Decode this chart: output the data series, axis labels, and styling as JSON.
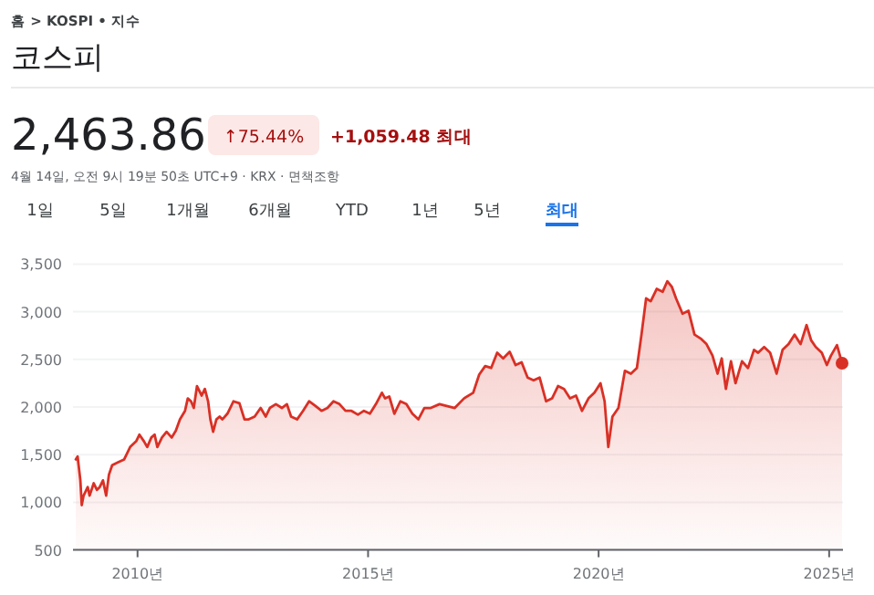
{
  "chart_data": {
    "type": "area",
    "title": "코스피",
    "annotations": [
      "홈 > KOSPI • 지수",
      "2,463.86",
      "↑75.44%",
      "+1,059.48 최대",
      "4월 14일, 오전 9시 19분 50초 UTC+9 · KRX · 면책조항",
      "1일",
      "5일",
      "1개월",
      "6개월",
      "YTD",
      "1년",
      "5년",
      "최대"
    ],
    "xlim": [
      2008.6,
      2025.3
    ],
    "ylim": [
      500,
      3500
    ],
    "xticks": [
      {
        "value": 2010,
        "label": "2010년"
      },
      {
        "value": 2015,
        "label": "2015년"
      },
      {
        "value": 2020,
        "label": "2020년"
      },
      {
        "value": 2025,
        "label": "2025년"
      }
    ],
    "yticks": [
      500,
      {
        "value": 1000,
        "label": "1,000"
      },
      {
        "value": 1500,
        "label": "1,500"
      },
      {
        "value": 2000,
        "label": "2,000"
      },
      {
        "value": 2500,
        "label": "2,500"
      },
      {
        "value": 3000,
        "label": "3,000"
      },
      {
        "value": 3500,
        "label": "3,500"
      }
    ],
    "grid": "y",
    "series": [
      {
        "color": "#d93025",
        "x": [
          2008.66,
          2008.7,
          2008.76,
          2008.79,
          2008.83,
          2008.92,
          2008.96,
          2009.05,
          2009.12,
          2009.18,
          2009.25,
          2009.32,
          2009.38,
          2009.45,
          2009.58,
          2009.71,
          2009.84,
          2009.97,
          2010.04,
          2010.14,
          2010.21,
          2010.3,
          2010.37,
          2010.43,
          2010.53,
          2010.63,
          2010.74,
          2010.83,
          2010.92,
          2011.03,
          2011.09,
          2011.16,
          2011.22,
          2011.29,
          2011.39,
          2011.46,
          2011.53,
          2011.58,
          2011.64,
          2011.71,
          2011.78,
          2011.84,
          2011.95,
          2012.08,
          2012.21,
          2012.32,
          2012.41,
          2012.54,
          2012.67,
          2012.78,
          2012.87,
          2013.0,
          2013.13,
          2013.24,
          2013.33,
          2013.46,
          2013.59,
          2013.72,
          2013.86,
          2013.99,
          2014.12,
          2014.25,
          2014.38,
          2014.51,
          2014.64,
          2014.78,
          2014.91,
          2015.04,
          2015.17,
          2015.3,
          2015.37,
          2015.46,
          2015.57,
          2015.7,
          2015.83,
          2015.96,
          2016.09,
          2016.22,
          2016.36,
          2016.55,
          2016.88,
          2017.08,
          2017.28,
          2017.41,
          2017.54,
          2017.67,
          2017.8,
          2017.93,
          2018.07,
          2018.2,
          2018.33,
          2018.46,
          2018.59,
          2018.72,
          2018.86,
          2018.99,
          2019.12,
          2019.25,
          2019.38,
          2019.51,
          2019.64,
          2019.78,
          2019.91,
          2020.04,
          2020.13,
          2020.21,
          2020.3,
          2020.43,
          2020.57,
          2020.7,
          2020.83,
          2020.93,
          2021.03,
          2021.13,
          2021.26,
          2021.39,
          2021.49,
          2021.59,
          2021.68,
          2021.82,
          2021.95,
          2022.08,
          2022.21,
          2022.34,
          2022.47,
          2022.58,
          2022.67,
          2022.76,
          2022.87,
          2022.97,
          2023.11,
          2023.24,
          2023.37,
          2023.46,
          2023.59,
          2023.72,
          2023.86,
          2023.99,
          2024.12,
          2024.25,
          2024.38,
          2024.51,
          2024.61,
          2024.71,
          2024.84,
          2024.95,
          2025.04,
          2025.17,
          2025.28
        ],
        "values": [
          1450,
          1480,
          1230,
          970,
          1070,
          1160,
          1070,
          1200,
          1130,
          1160,
          1230,
          1070,
          1290,
          1390,
          1420,
          1450,
          1580,
          1640,
          1710,
          1640,
          1580,
          1680,
          1710,
          1580,
          1680,
          1740,
          1680,
          1750,
          1870,
          1960,
          2090,
          2060,
          1990,
          2220,
          2120,
          2190,
          2060,
          1870,
          1740,
          1870,
          1900,
          1870,
          1930,
          2060,
          2040,
          1870,
          1870,
          1900,
          1990,
          1900,
          1990,
          2030,
          1990,
          2030,
          1900,
          1870,
          1960,
          2060,
          2010,
          1960,
          1990,
          2060,
          2030,
          1960,
          1960,
          1920,
          1960,
          1930,
          2030,
          2150,
          2090,
          2110,
          1930,
          2060,
          2030,
          1930,
          1870,
          1990,
          1990,
          2030,
          1990,
          2090,
          2150,
          2340,
          2430,
          2410,
          2570,
          2510,
          2580,
          2440,
          2470,
          2310,
          2280,
          2310,
          2060,
          2090,
          2220,
          2190,
          2090,
          2120,
          1960,
          2090,
          2150,
          2250,
          2060,
          1580,
          1900,
          1990,
          2380,
          2350,
          2410,
          2760,
          3140,
          3110,
          3240,
          3210,
          3320,
          3260,
          3140,
          2980,
          3010,
          2760,
          2720,
          2660,
          2540,
          2350,
          2510,
          2190,
          2480,
          2250,
          2480,
          2410,
          2600,
          2570,
          2630,
          2570,
          2350,
          2600,
          2660,
          2760,
          2660,
          2860,
          2700,
          2630,
          2570,
          2440,
          2540,
          2650,
          2460
        ]
      },
      {
        "type": "scatter",
        "color": "#d93025",
        "marker": "circle",
        "x": [
          2025.28
        ],
        "values": [
          2460
        ]
      }
    ]
  }
}
